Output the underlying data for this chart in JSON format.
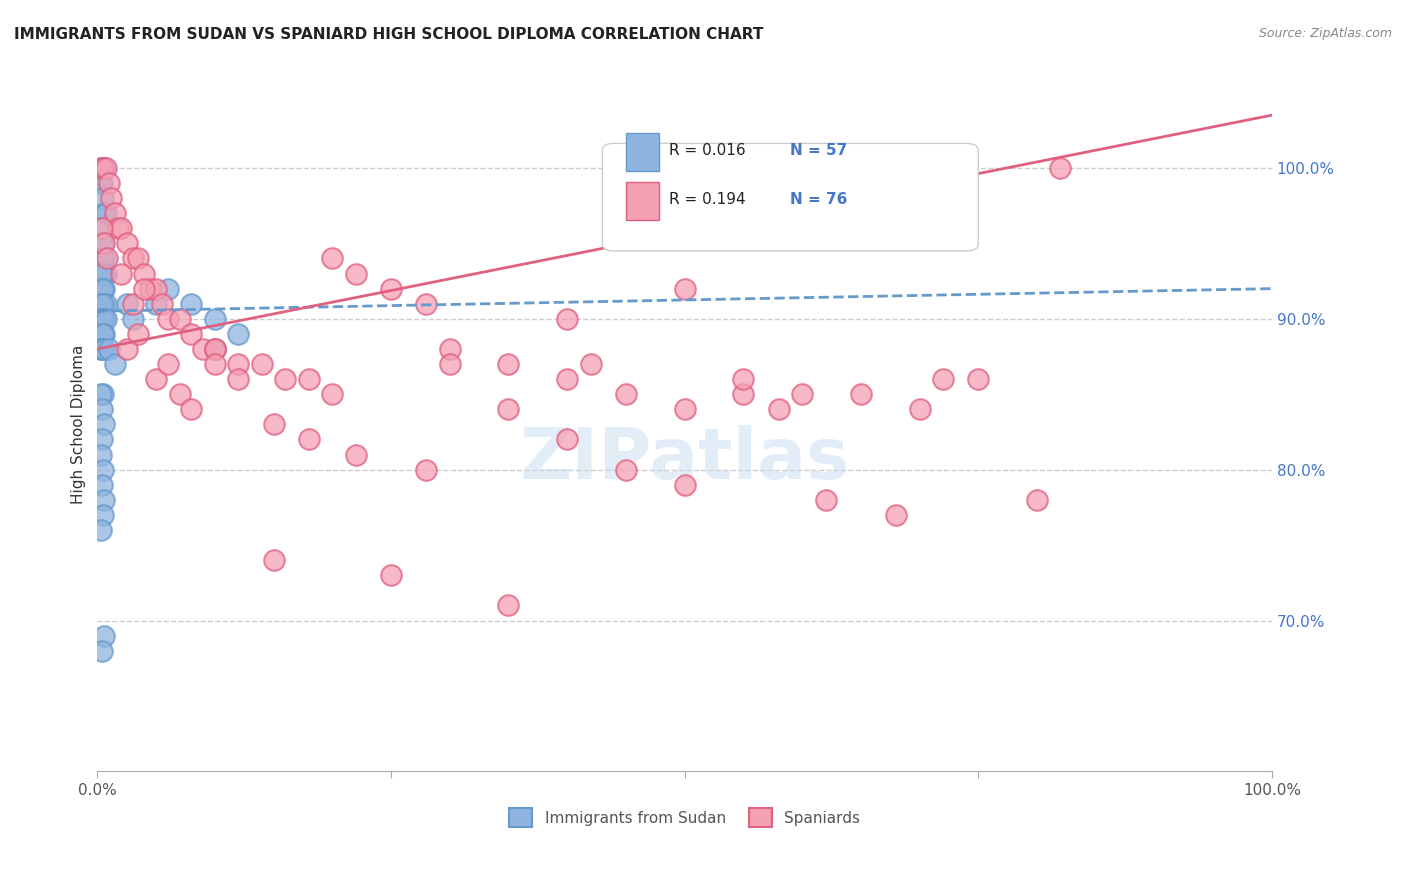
{
  "title": "IMMIGRANTS FROM SUDAN VS SPANIARD HIGH SCHOOL DIPLOMA CORRELATION CHART",
  "source": "Source: ZipAtlas.com",
  "xlabel_bottom": "",
  "ylabel": "High School Diploma",
  "xaxis_label_left": "0.0%",
  "xaxis_label_right": "100.0%",
  "watermark": "ZIPatlas",
  "legend_r1": "R = 0.016",
  "legend_n1": "N = 57",
  "legend_r2": "R = 0.194",
  "legend_n2": "N = 76",
  "legend_label1": "Immigrants from Sudan",
  "legend_label2": "Spaniards",
  "color_blue": "#90b4e0",
  "color_pink": "#f5a0b5",
  "color_blue_line": "#6699cc",
  "color_pink_line": "#e06080",
  "color_blue_text": "#4477cc",
  "ytick_labels": [
    "70.0%",
    "80.0%",
    "90.0%",
    "100.0%"
  ],
  "ytick_values": [
    0.7,
    0.8,
    0.9,
    1.0
  ],
  "xlim": [
    0.0,
    1.0
  ],
  "ylim": [
    0.6,
    1.06
  ],
  "blue_x": [
    0.004,
    0.005,
    0.006,
    0.003,
    0.004,
    0.005,
    0.006,
    0.007,
    0.004,
    0.003,
    0.005,
    0.004,
    0.006,
    0.007,
    0.005,
    0.004,
    0.003,
    0.006,
    0.005,
    0.004,
    0.007,
    0.003,
    0.005,
    0.006,
    0.004,
    0.003,
    0.005,
    0.007,
    0.004,
    0.006,
    0.005,
    0.003,
    0.004,
    0.006,
    0.025,
    0.03,
    0.05,
    0.06,
    0.08,
    0.1,
    0.12,
    0.1,
    0.005,
    0.003,
    0.004,
    0.006,
    0.004,
    0.003,
    0.005,
    0.004,
    0.006,
    0.005,
    0.003,
    0.006,
    0.004,
    0.01,
    0.015
  ],
  "blue_y": [
    1.0,
    1.0,
    1.0,
    0.99,
    0.99,
    0.98,
    0.97,
    0.97,
    0.96,
    0.95,
    0.95,
    0.94,
    0.94,
    0.93,
    0.93,
    0.93,
    0.92,
    0.92,
    0.92,
    0.91,
    0.91,
    0.91,
    0.91,
    0.9,
    0.9,
    0.9,
    0.9,
    0.9,
    0.89,
    0.89,
    0.89,
    0.88,
    0.88,
    0.88,
    0.91,
    0.9,
    0.91,
    0.92,
    0.91,
    0.9,
    0.89,
    0.88,
    0.85,
    0.85,
    0.84,
    0.83,
    0.82,
    0.81,
    0.8,
    0.79,
    0.78,
    0.77,
    0.76,
    0.69,
    0.68,
    0.88,
    0.87
  ],
  "pink_x": [
    0.003,
    0.005,
    0.007,
    0.01,
    0.012,
    0.015,
    0.018,
    0.02,
    0.025,
    0.03,
    0.035,
    0.04,
    0.045,
    0.05,
    0.055,
    0.06,
    0.07,
    0.08,
    0.09,
    0.1,
    0.12,
    0.14,
    0.16,
    0.18,
    0.2,
    0.22,
    0.25,
    0.28,
    0.3,
    0.35,
    0.4,
    0.42,
    0.45,
    0.5,
    0.55,
    0.58,
    0.6,
    0.65,
    0.7,
    0.72,
    0.004,
    0.006,
    0.008,
    0.025,
    0.03,
    0.035,
    0.05,
    0.06,
    0.07,
    0.08,
    0.1,
    0.12,
    0.15,
    0.18,
    0.22,
    0.28,
    0.35,
    0.4,
    0.45,
    0.5,
    0.55,
    0.62,
    0.68,
    0.75,
    0.8,
    0.02,
    0.04,
    0.1,
    0.2,
    0.3,
    0.4,
    0.5,
    0.15,
    0.25,
    0.35,
    0.82
  ],
  "pink_y": [
    1.0,
    1.0,
    1.0,
    0.99,
    0.98,
    0.97,
    0.96,
    0.96,
    0.95,
    0.94,
    0.94,
    0.93,
    0.92,
    0.92,
    0.91,
    0.9,
    0.9,
    0.89,
    0.88,
    0.88,
    0.87,
    0.87,
    0.86,
    0.86,
    0.94,
    0.93,
    0.92,
    0.91,
    0.88,
    0.87,
    0.86,
    0.87,
    0.85,
    0.84,
    0.85,
    0.84,
    0.85,
    0.85,
    0.84,
    0.86,
    0.96,
    0.95,
    0.94,
    0.88,
    0.91,
    0.89,
    0.86,
    0.87,
    0.85,
    0.84,
    0.88,
    0.86,
    0.83,
    0.82,
    0.81,
    0.8,
    0.84,
    0.82,
    0.8,
    0.79,
    0.86,
    0.78,
    0.77,
    0.86,
    0.78,
    0.93,
    0.92,
    0.87,
    0.85,
    0.87,
    0.9,
    0.92,
    0.74,
    0.73,
    0.71,
    1.0
  ],
  "blue_trend_x": [
    0.0,
    1.0
  ],
  "blue_trend_y": [
    0.905,
    0.92
  ],
  "pink_trend_x": [
    0.0,
    1.0
  ],
  "pink_trend_y": [
    0.88,
    1.035
  ],
  "grid_color": "#cccccc",
  "background_color": "#ffffff"
}
